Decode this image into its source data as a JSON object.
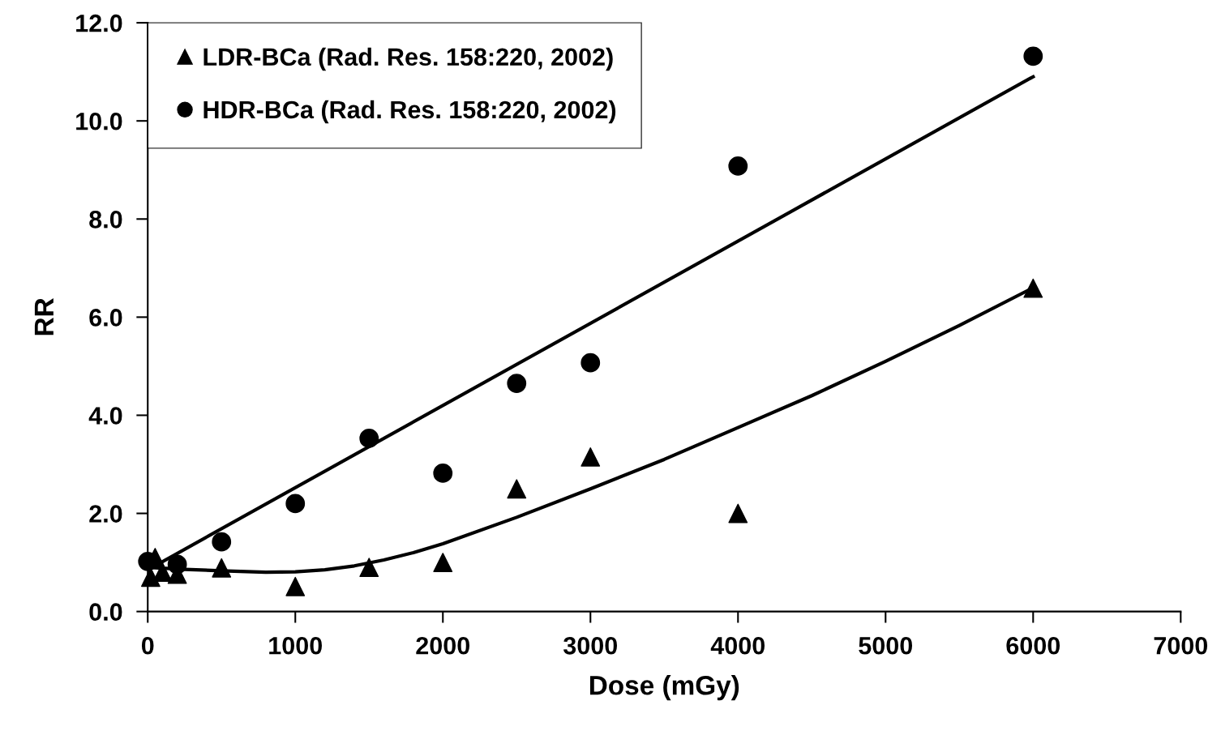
{
  "chart_data": {
    "type": "scatter",
    "xlabel": "Dose (mGy)",
    "ylabel": "RR",
    "xlim": [
      0,
      7000
    ],
    "xticks": [
      0,
      1000,
      2000,
      3000,
      4000,
      5000,
      6000,
      7000
    ],
    "ylim": [
      0,
      12
    ],
    "yticks": [
      {
        "value": 0,
        "label": "0.0"
      },
      {
        "value": 2,
        "label": "2.0"
      },
      {
        "value": 4,
        "label": "4.0"
      },
      {
        "value": 6,
        "label": "6.0"
      },
      {
        "value": 8,
        "label": "8.0"
      },
      {
        "value": 10,
        "label": "10.0"
      },
      {
        "value": 12,
        "label": "12.0"
      }
    ],
    "grid": false,
    "legend": "top left",
    "series": [
      {
        "name": "LDR-BCa (Rad. Res. 158:220, 2002)",
        "color": "#000000",
        "marker": "triangle",
        "x": [
          20,
          50,
          100,
          200,
          500,
          1000,
          1500,
          2000,
          2500,
          3000,
          4000,
          6000
        ],
        "values": [
          0.7,
          1.1,
          0.8,
          0.76,
          0.89,
          0.51,
          0.9,
          1.0,
          2.5,
          3.15,
          2.0,
          6.59
        ]
      },
      {
        "name": "HDR-BCa (Rad. Res. 158:220, 2002)",
        "color": "#000000",
        "marker": "circle",
        "x": [
          0,
          200,
          500,
          1000,
          1500,
          2000,
          2500,
          3000,
          4000,
          6000
        ],
        "values": [
          1.02,
          0.96,
          1.42,
          2.2,
          3.53,
          2.82,
          4.65,
          5.07,
          9.08,
          11.32
        ]
      },
      {
        "type": "line",
        "color": "#000000",
        "line_style": "solid",
        "x": [
          0,
          6000
        ],
        "values": [
          0.85,
          10.9
        ]
      },
      {
        "type": "line",
        "color": "#000000",
        "line_style": "solid",
        "x": [
          0,
          250,
          500,
          800,
          1000,
          1200,
          1400,
          1600,
          1800,
          2000,
          2500,
          3000,
          3500,
          4000,
          4500,
          5000,
          5500,
          6000
        ],
        "values": [
          0.9,
          0.86,
          0.83,
          0.8,
          0.81,
          0.85,
          0.93,
          1.05,
          1.2,
          1.38,
          1.92,
          2.5,
          3.1,
          3.75,
          4.4,
          5.1,
          5.83,
          6.6
        ]
      }
    ]
  }
}
